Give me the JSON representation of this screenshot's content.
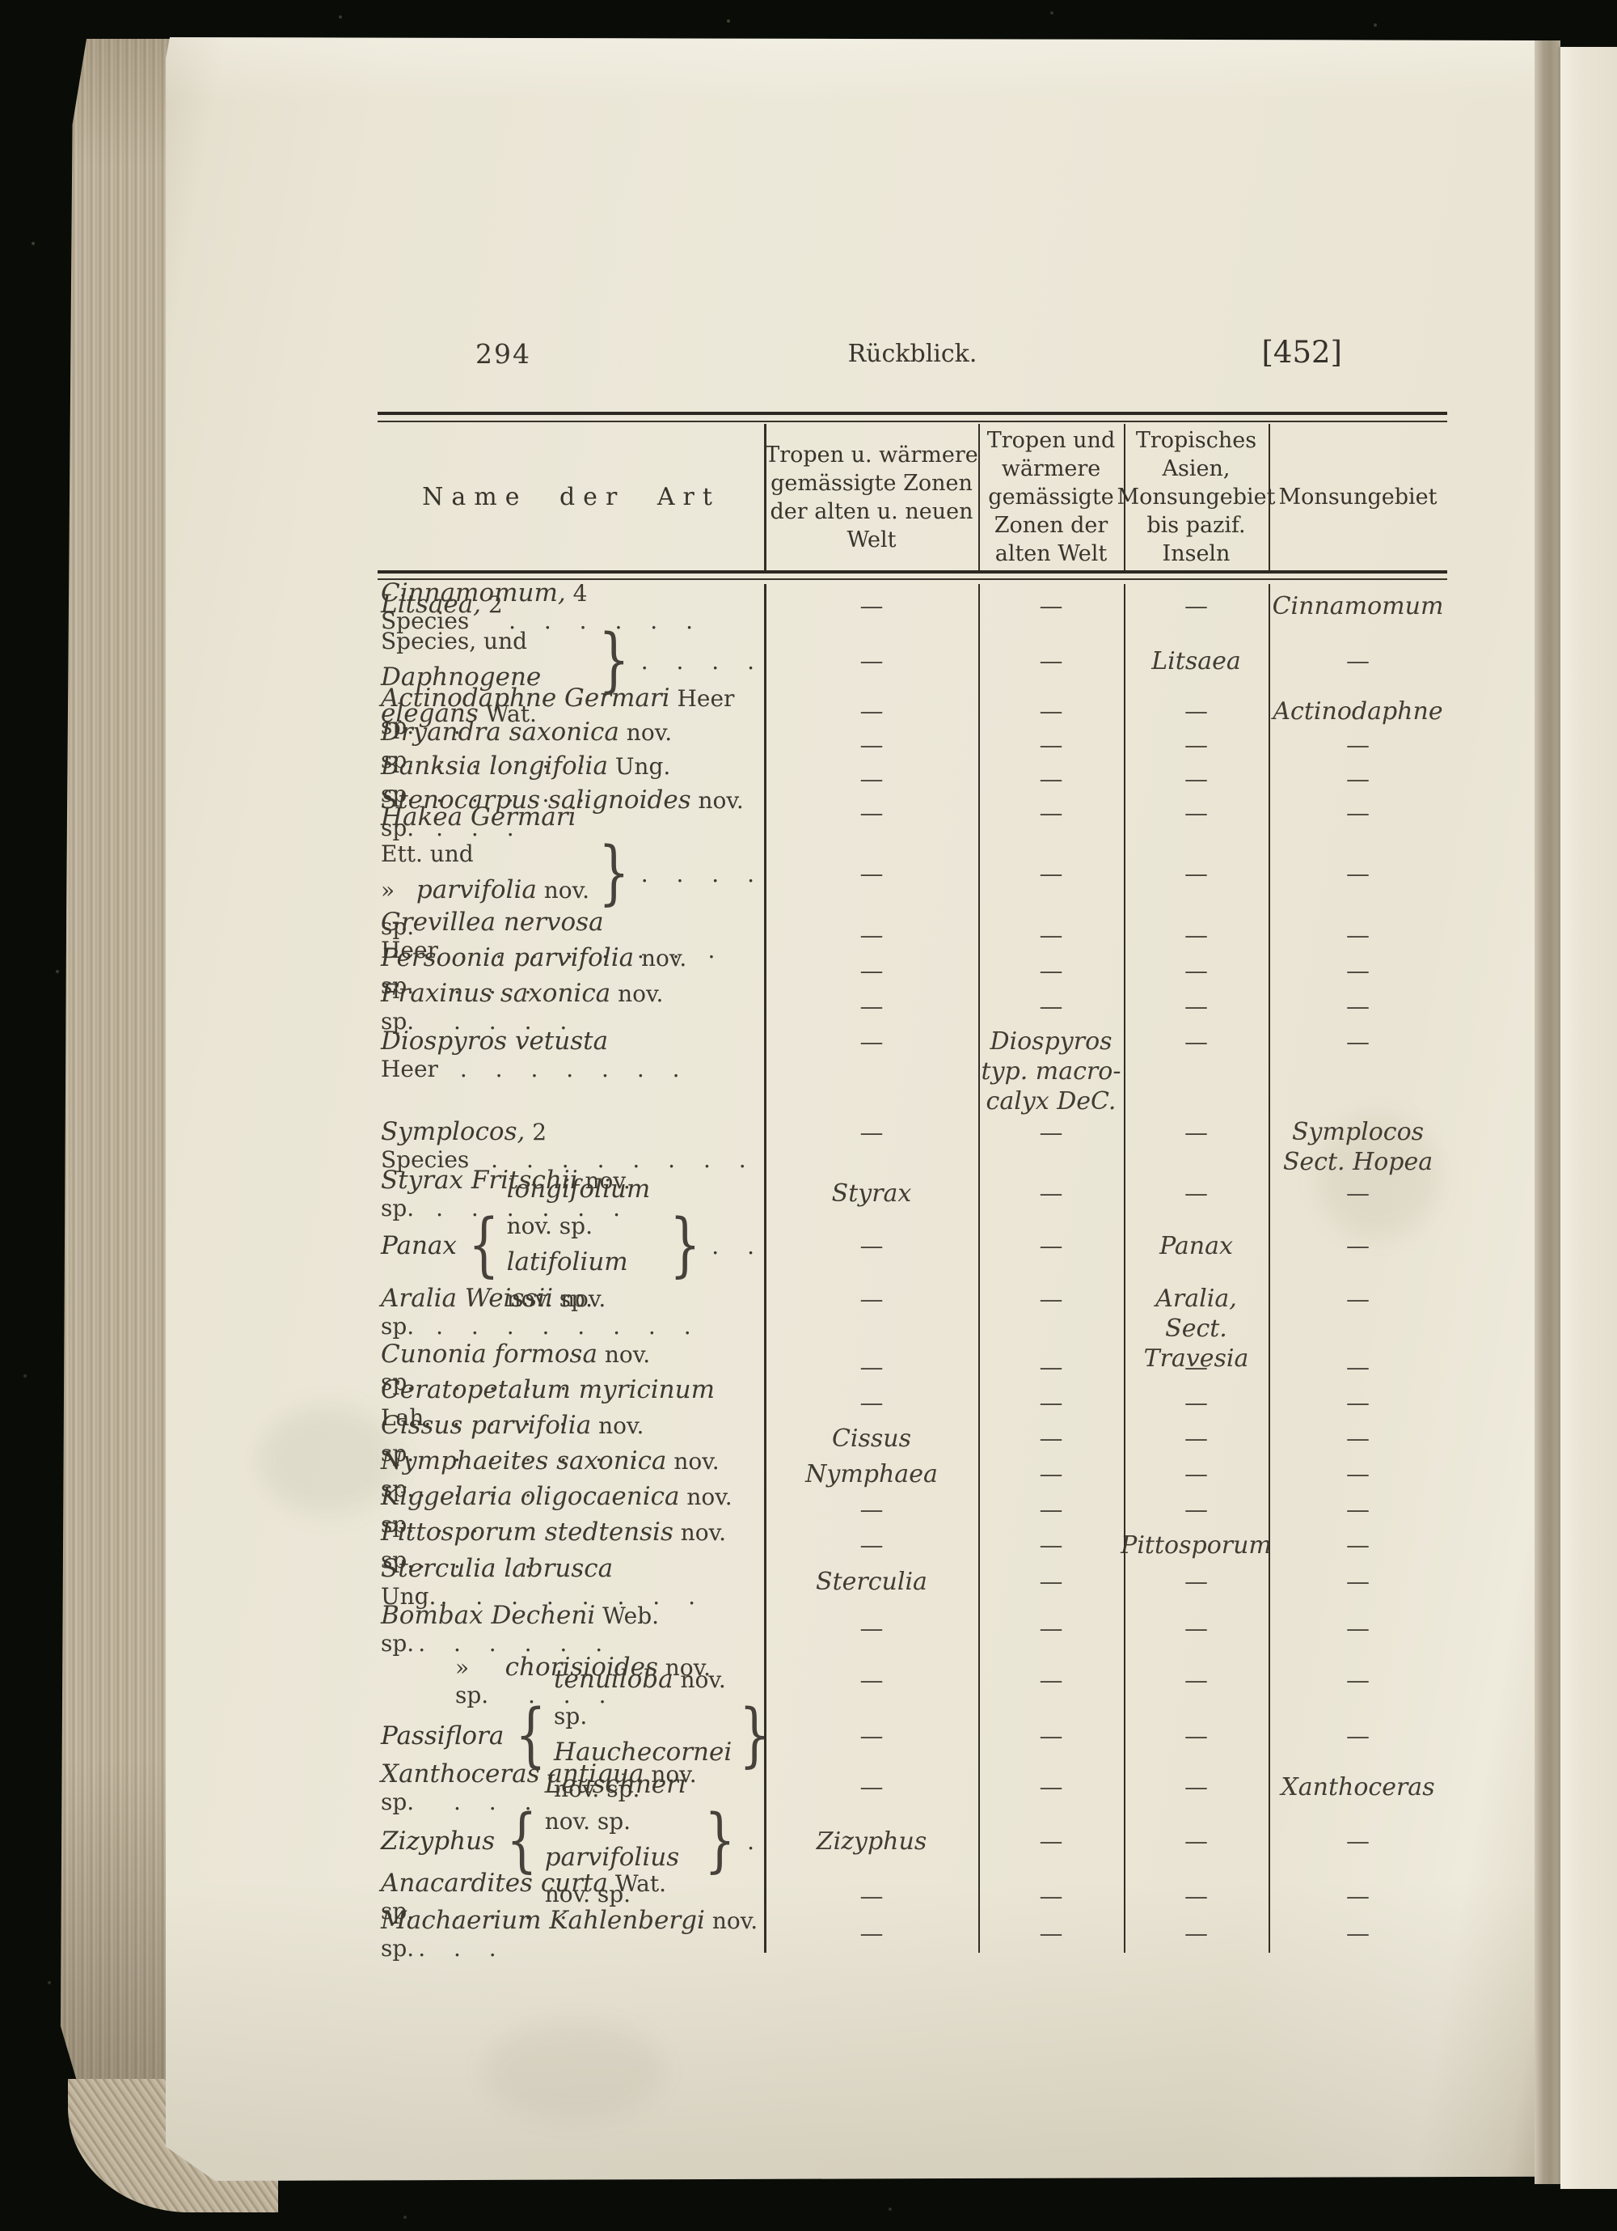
{
  "page": {
    "page_number": "294",
    "running_title": "Rückblick.",
    "bracket_number": "[452]"
  },
  "table": {
    "dash": "—",
    "headers": {
      "col1": "Name der Art",
      "col2": "Tropen u. wärmere\ngemässigte Zonen\nder alten u. neuen\nWelt",
      "col3": "Tropen und\nwärmere\ngemässigte\nZonen der\nalten Welt",
      "col4": "Tropisches\nAsien,\nMonsungebiet\nbis pazif.\nInseln",
      "col5": "Monsungebiet"
    },
    "rows": [
      {
        "type": "simple",
        "h": 54,
        "name": [
          [
            "i",
            "Cinnamomum,"
          ],
          [
            "r",
            " 4 Species"
          ],
          [
            "d",
            "  . . . . . ."
          ]
        ],
        "cells": [
          "—",
          "—",
          "—",
          "Cinnamomum"
        ]
      },
      {
        "type": "brace-right",
        "h": 82,
        "lines": [
          [
            [
              "i",
              "Litsaea,"
            ],
            [
              "r",
              " 2 Species, und"
            ]
          ],
          [
            [
              "i",
              "Daphnogene elegans"
            ],
            [
              "r",
              " Wat."
            ]
          ]
        ],
        "brace_right": "}",
        "dots": ". . . .",
        "cells": [
          "—",
          "—",
          "Litsaea",
          "—"
        ]
      },
      {
        "type": "simple",
        "h": 42,
        "name": [
          [
            "i",
            "Actinodaphne Germari"
          ],
          [
            "r",
            " Heer sp."
          ],
          [
            "d",
            "  ."
          ]
        ],
        "cells": [
          "—",
          "—",
          "—",
          "Actinodaphne"
        ]
      },
      {
        "type": "simple",
        "h": 42,
        "name": [
          [
            "i",
            "Dryandra saxonica"
          ],
          [
            "r",
            " nov. sp."
          ],
          [
            "d",
            " . . . . ."
          ]
        ],
        "cells": [
          "—",
          "—",
          "—",
          "—"
        ]
      },
      {
        "type": "simple",
        "h": 42,
        "name": [
          [
            "i",
            "Banksia longifolia"
          ],
          [
            "r",
            " Ung. sp."
          ],
          [
            "d",
            " . . . . ."
          ]
        ],
        "cells": [
          "—",
          "—",
          "—",
          "—"
        ]
      },
      {
        "type": "simple",
        "h": 42,
        "name": [
          [
            "i",
            "Stenocarpus salignoides"
          ],
          [
            "r",
            " nov. sp."
          ],
          [
            "d",
            " . . ."
          ]
        ],
        "cells": [
          "—",
          "—",
          "—",
          "—"
        ]
      },
      {
        "type": "brace-right",
        "h": 108,
        "lines": [
          [
            [
              "i",
              "Hakea Germari"
            ],
            [
              "r",
              " Ett. und"
            ]
          ],
          [
            [
              "r",
              "»   "
            ],
            [
              "i",
              "parvifolia"
            ],
            [
              "r",
              " nov. sp."
            ]
          ]
        ],
        "brace_right": "}",
        "dots": ". . . .",
        "cells": [
          "—",
          "—",
          "—",
          "—"
        ]
      },
      {
        "type": "simple",
        "h": 44,
        "name": [
          [
            "i",
            "Grevillea nervosa"
          ],
          [
            "r",
            " Heer"
          ],
          [
            "d",
            " . . . . . . . ."
          ]
        ],
        "cells": [
          "—",
          "—",
          "—",
          "—"
        ]
      },
      {
        "type": "simple",
        "h": 44,
        "name": [
          [
            "i",
            "Persoonia parvifolia"
          ],
          [
            "r",
            " nov. sp."
          ],
          [
            "d",
            "  . . ."
          ]
        ],
        "cells": [
          "—",
          "—",
          "—",
          "—"
        ]
      },
      {
        "type": "simple",
        "h": 44,
        "name": [
          [
            "i",
            "Fraxinus saxonica"
          ],
          [
            "r",
            " nov. sp."
          ],
          [
            "d",
            "  . . . ."
          ]
        ],
        "cells": [
          "—",
          "—",
          "—",
          "—"
        ]
      },
      {
        "type": "simple",
        "h": 112,
        "valign": "top",
        "name": [
          [
            "i",
            "Diospyros vetusta"
          ],
          [
            "r",
            " Heer"
          ],
          [
            "d",
            " . . . . . . ."
          ]
        ],
        "cells": [
          "—",
          "Diospyros\ntyp. macro-\ncalyx DeC.",
          "—",
          "—"
        ]
      },
      {
        "type": "simple",
        "h": 76,
        "valign": "top",
        "name": [
          [
            "i",
            "Symplocos,"
          ],
          [
            "r",
            " 2 Species"
          ],
          [
            "d",
            " . . . . . . . ."
          ]
        ],
        "cells": [
          "—",
          "—",
          "—",
          "Symplocos\nSect. Hopea"
        ]
      },
      {
        "type": "simple",
        "h": 42,
        "name": [
          [
            "i",
            "Styrax Fritschii"
          ],
          [
            "r",
            " nov. sp."
          ],
          [
            "d",
            " . . . . . ."
          ]
        ],
        "cells": [
          "Styrax",
          "—",
          "—",
          "—"
        ]
      },
      {
        "type": "brace-genus",
        "h": 88,
        "genus": "Panax",
        "brace_left": "{",
        "brace_right": "}",
        "dots": ". .",
        "lines": [
          [
            [
              "i",
              "longifolium"
            ],
            [
              "r",
              " nov. sp."
            ]
          ],
          [
            [
              "i",
              "latifolium"
            ],
            [
              "r",
              " nov. sp."
            ]
          ]
        ],
        "cells": [
          "—",
          "—",
          "Panax",
          "—"
        ]
      },
      {
        "type": "simple",
        "h": 84,
        "valign": "top",
        "name": [
          [
            "i",
            "Aralia Weissii"
          ],
          [
            "r",
            " nov. sp."
          ],
          [
            "d",
            " . . . . . . . ."
          ]
        ],
        "cells": [
          "—",
          "—",
          "Aralia,\nSect. Travesia",
          "—"
        ]
      },
      {
        "type": "simple",
        "h": 44,
        "name": [
          [
            "i",
            "Cunonia formosa"
          ],
          [
            "r",
            " nov. sp."
          ],
          [
            "d",
            "  . . . . ."
          ]
        ],
        "cells": [
          "—",
          "—",
          "—",
          "—"
        ]
      },
      {
        "type": "simple",
        "h": 44,
        "name": [
          [
            "i",
            "Ceratopetalum myricinum"
          ],
          [
            "r",
            " Lah."
          ],
          [
            "d",
            " . . . ."
          ]
        ],
        "cells": [
          "—",
          "—",
          "—",
          "—"
        ]
      },
      {
        "type": "simple",
        "h": 44,
        "name": [
          [
            "i",
            "Cissus parvifolia"
          ],
          [
            "r",
            " nov. sp."
          ],
          [
            "d",
            ". . . . . . ."
          ]
        ],
        "cells": [
          "Cissus",
          "—",
          "—",
          "—"
        ]
      },
      {
        "type": "simple",
        "h": 44,
        "name": [
          [
            "i",
            "Nymphaeites saxonica"
          ],
          [
            "r",
            " nov. sp."
          ],
          [
            "d",
            ". . . ."
          ]
        ],
        "cells": [
          "Nymphaea",
          "—",
          "—",
          "—"
        ]
      },
      {
        "type": "simple",
        "h": 44,
        "name": [
          [
            "i",
            "Kiggelaria oligocaenica"
          ],
          [
            "r",
            " nov. sp."
          ],
          [
            "d",
            " . . ."
          ]
        ],
        "cells": [
          "—",
          "—",
          "—",
          "—"
        ]
      },
      {
        "type": "simple",
        "h": 44,
        "name": [
          [
            "i",
            "Pittosporum stedtensis"
          ],
          [
            "r",
            " nov. sp."
          ],
          [
            "d",
            ". . . ."
          ]
        ],
        "cells": [
          "—",
          "—",
          "Pittosporum",
          "—"
        ]
      },
      {
        "type": "simple",
        "h": 46,
        "name": [
          [
            "i",
            "Sterculia labrusca"
          ],
          [
            "r",
            " Ung."
          ],
          [
            "d",
            ". . . . . . . ."
          ]
        ],
        "cells": [
          "Sterculia",
          "—",
          "—",
          "—"
        ]
      },
      {
        "type": "simple",
        "h": 70,
        "name": [
          [
            "i",
            "Bombax Decheni"
          ],
          [
            "r",
            " Web. sp."
          ],
          [
            "d",
            ". . . . . ."
          ]
        ],
        "cells": [
          "—",
          "—",
          "—",
          "—"
        ]
      },
      {
        "type": "simple",
        "h": 58,
        "indent": 92,
        "name": [
          [
            "r",
            "»     "
          ],
          [
            "i",
            "chorisioides"
          ],
          [
            "r",
            " nov. sp."
          ],
          [
            "d",
            "  . . ."
          ]
        ],
        "cells": [
          "—",
          "—",
          "—",
          "—"
        ]
      },
      {
        "type": "brace-genus",
        "h": 80,
        "genus": "Passiflora",
        "brace_left": "{",
        "brace_right": "}",
        "dots": "",
        "lines": [
          [
            [
              "i",
              "tenuiloba"
            ],
            [
              "r",
              " nov. sp."
            ]
          ],
          [
            [
              "i",
              "Hauchecornei"
            ],
            [
              "r",
              " nov. sp."
            ]
          ]
        ],
        "cells": [
          "—",
          "—",
          "—",
          "—"
        ]
      },
      {
        "type": "simple",
        "h": 46,
        "name": [
          [
            "i",
            "Xanthoceras antiqua"
          ],
          [
            "r",
            " nov. sp."
          ],
          [
            "d",
            "  . . ."
          ]
        ],
        "cells": [
          "—",
          "—",
          "—",
          "Xanthoceras"
        ]
      },
      {
        "type": "brace-genus",
        "h": 88,
        "genus": "Zizyphus",
        "brace_left": "{",
        "brace_right": "}",
        "dots": ".",
        "lines": [
          [
            [
              "i",
              "Leuschneri"
            ],
            [
              "r",
              " nov. sp."
            ]
          ],
          [
            [
              "i",
              "parvifolius"
            ],
            [
              "r",
              " nov. sp."
            ]
          ]
        ],
        "cells": [
          "Zizyphus",
          "—",
          "—",
          "—"
        ]
      },
      {
        "type": "simple",
        "h": 48,
        "name": [
          [
            "i",
            "Anacardites curta"
          ],
          [
            "r",
            " Wat. sp."
          ],
          [
            "d",
            "  . . . ."
          ]
        ],
        "cells": [
          "—",
          "—",
          "—",
          "—"
        ]
      },
      {
        "type": "simple",
        "h": 44,
        "name": [
          [
            "i",
            "Machaerium Kahlenbergi"
          ],
          [
            "r",
            " nov. sp."
          ],
          [
            "d",
            ". . ."
          ]
        ],
        "cells": [
          "—",
          "—",
          "—",
          "—"
        ]
      }
    ]
  }
}
